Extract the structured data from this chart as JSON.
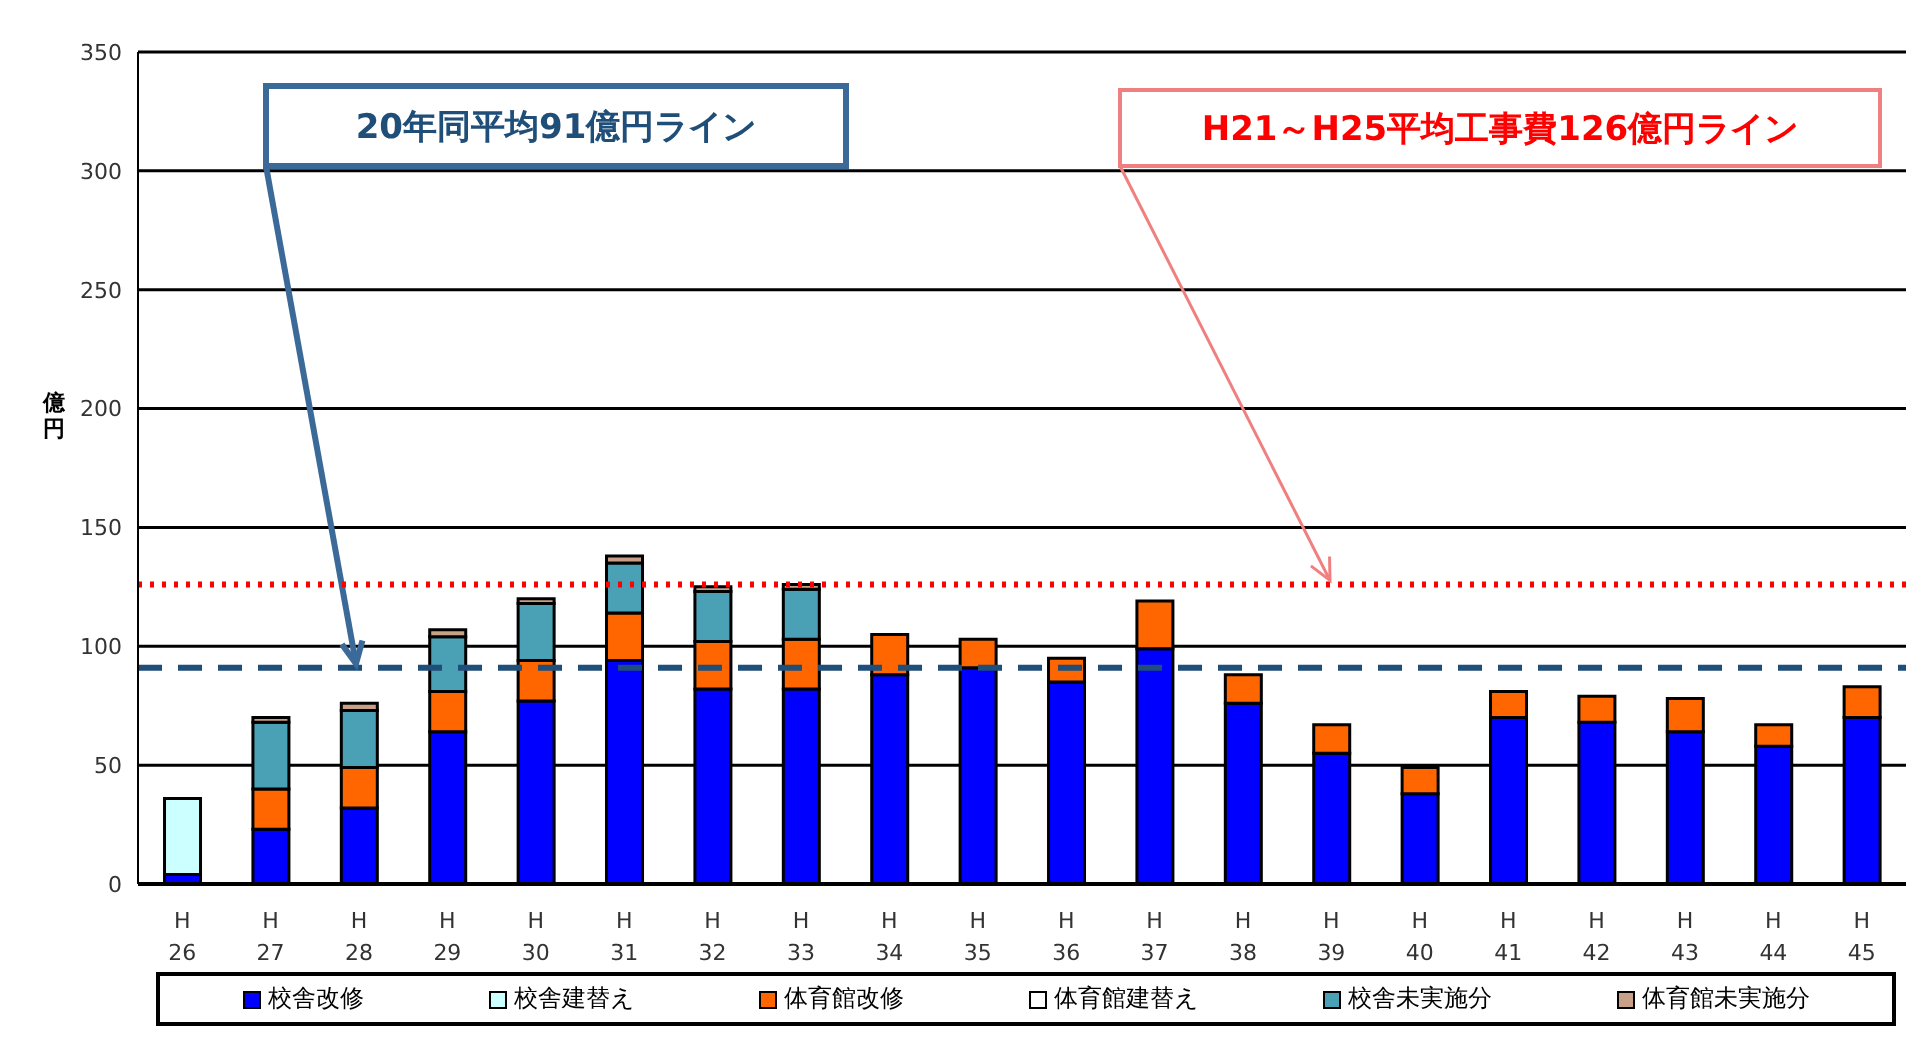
{
  "chart_data": {
    "type": "bar",
    "stacked": true,
    "ylabel": "億円",
    "categories": [
      "H\n26",
      "H\n27",
      "H\n28",
      "H\n29",
      "H\n30",
      "H\n31",
      "H\n32",
      "H\n33",
      "H\n34",
      "H\n35",
      "H\n36",
      "H\n37",
      "H\n38",
      "H\n39",
      "H\n40",
      "H\n41",
      "H\n42",
      "H\n43",
      "H\n44",
      "H\n45"
    ],
    "series": [
      {
        "name": "校舎改修",
        "color": "#0000ff",
        "values": [
          4,
          23,
          32,
          64,
          77,
          94,
          82,
          82,
          88,
          91,
          85,
          99,
          76,
          55,
          38,
          70,
          68,
          64,
          58,
          70
        ]
      },
      {
        "name": "校舎建替え",
        "color": "#ccffff",
        "values": [
          32,
          0,
          0,
          0,
          0,
          0,
          0,
          0,
          0,
          0,
          0,
          0,
          0,
          0,
          0,
          0,
          0,
          0,
          0,
          0
        ]
      },
      {
        "name": "体育館改修",
        "color": "#ff6600",
        "values": [
          0,
          17,
          17,
          17,
          17,
          20,
          20,
          21,
          17,
          12,
          10,
          20,
          12,
          12,
          11,
          11,
          11,
          14,
          9,
          13
        ]
      },
      {
        "name": "体育館建替え",
        "color": "#ffffff",
        "values": [
          0,
          0,
          0,
          0,
          0,
          0,
          0,
          0,
          0,
          0,
          0,
          0,
          0,
          0,
          0,
          0,
          0,
          0,
          0,
          0
        ]
      },
      {
        "name": "校舎未実施分",
        "color": "#4aa0b4",
        "values": [
          0,
          28,
          24,
          23,
          24,
          21,
          21,
          21,
          0,
          0,
          0,
          0,
          0,
          0,
          0,
          0,
          0,
          0,
          0,
          0
        ]
      },
      {
        "name": "体育館未実施分",
        "color": "#c8a088",
        "values": [
          0,
          2,
          3,
          3,
          2,
          3,
          2,
          2,
          0,
          0,
          0,
          0,
          0,
          0,
          0,
          0,
          0,
          0,
          0,
          0
        ]
      }
    ],
    "ylim": [
      0,
      350
    ],
    "yticks": [
      0,
      50,
      100,
      150,
      200,
      250,
      300,
      350
    ],
    "grid": "y",
    "legend": "bottom",
    "ref_lines": [
      {
        "axis": "y",
        "value": 91,
        "label": "20年同平均91億円ライン",
        "color": "#1f4e79",
        "line_style": "dashed"
      },
      {
        "axis": "y",
        "value": 126,
        "label": "H21～H25平均工事費126億円ライン",
        "color": "#ff0000",
        "line_style": "dotted"
      }
    ]
  }
}
